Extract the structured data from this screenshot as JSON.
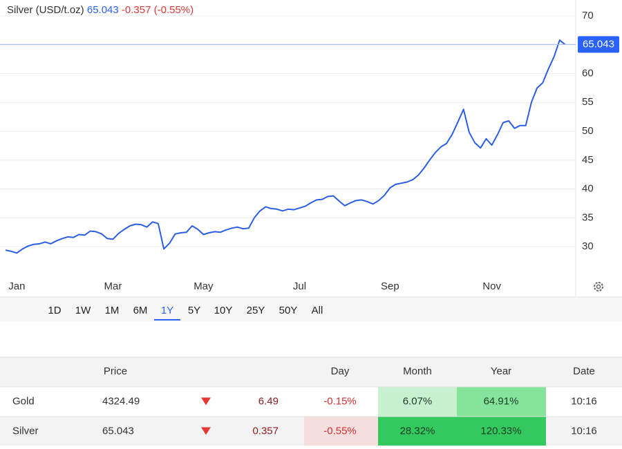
{
  "chart_data": {
    "type": "line",
    "title": "Silver (USD/t.oz)",
    "last_value": 65.043,
    "change": "-0.357 (-0.55%)",
    "color": "#2b5ee8",
    "last_line_color": "#a9c1f5",
    "tag_color": "#2962ff",
    "grid": true,
    "categories": [
      null,
      null,
      "Jan",
      null,
      null,
      null,
      null,
      null,
      null,
      null,
      null,
      null,
      null,
      null,
      null,
      null,
      null,
      null,
      null,
      "Mar",
      null,
      null,
      null,
      null,
      null,
      null,
      null,
      null,
      null,
      null,
      null,
      null,
      null,
      null,
      null,
      "May",
      null,
      null,
      null,
      null,
      null,
      null,
      null,
      null,
      null,
      null,
      null,
      null,
      null,
      null,
      null,
      null,
      "Jul",
      null,
      null,
      null,
      null,
      null,
      null,
      null,
      null,
      null,
      null,
      null,
      null,
      null,
      null,
      null,
      "Sep",
      null,
      null,
      null,
      null,
      null,
      null,
      null,
      null,
      null,
      null,
      null,
      null,
      null,
      null,
      null,
      null,
      null,
      "Nov",
      null,
      null,
      null,
      null,
      null,
      null,
      null,
      null,
      null,
      null,
      null,
      null,
      null
    ],
    "values": [
      29.4,
      29.2,
      28.9,
      29.6,
      30.1,
      30.4,
      30.5,
      30.8,
      30.5,
      31.0,
      31.4,
      31.7,
      31.6,
      32.1,
      32.0,
      32.7,
      32.6,
      32.2,
      31.4,
      31.3,
      32.3,
      33.0,
      33.6,
      33.9,
      33.8,
      33.4,
      34.3,
      34.0,
      29.6,
      30.6,
      32.2,
      32.4,
      32.5,
      33.6,
      33.0,
      32.1,
      32.4,
      32.6,
      32.5,
      32.9,
      33.2,
      33.4,
      33.1,
      33.2,
      35.0,
      36.2,
      36.9,
      36.6,
      36.5,
      36.2,
      36.5,
      36.4,
      36.7,
      37.0,
      37.6,
      38.1,
      38.2,
      38.7,
      38.8,
      37.9,
      37.1,
      37.6,
      38.0,
      38.1,
      37.8,
      37.4,
      38.0,
      38.9,
      40.2,
      40.8,
      41.0,
      41.2,
      41.6,
      42.4,
      43.6,
      45.0,
      46.3,
      47.3,
      47.9,
      49.5,
      51.6,
      53.8,
      49.8,
      48.0,
      47.1,
      48.7,
      47.6,
      49.4,
      51.5,
      51.8,
      50.5,
      51.0,
      51.0,
      55.0,
      57.5,
      58.4,
      60.8,
      62.9,
      65.8,
      65.0
    ],
    "ylim": [
      25.1,
      72.75
    ],
    "yticks": [
      30,
      35,
      40,
      45,
      50,
      55,
      60,
      65,
      70
    ]
  },
  "range_selector": {
    "options": [
      "1D",
      "1W",
      "1M",
      "6M",
      "1Y",
      "5Y",
      "10Y",
      "25Y",
      "50Y",
      "All"
    ],
    "active": "1Y"
  },
  "table": {
    "header": {
      "price": "Price",
      "day": "Day",
      "month": "Month",
      "year": "Year",
      "date": "Date"
    },
    "rows": [
      {
        "name": "Gold",
        "price": "4324.49",
        "direction": "down",
        "change": "6.49",
        "day": "-0.15%",
        "month": "6.07%",
        "year": "64.91%",
        "date": "10:16",
        "month_color": "#c8f1d2",
        "year_color": "#86e39c"
      },
      {
        "name": "Silver",
        "price": "65.043",
        "direction": "down",
        "change": "0.357",
        "day": "-0.55%",
        "month": "28.32%",
        "year": "120.33%",
        "date": "10:16",
        "day_color": "#f7dede",
        "month_color": "#33c95e",
        "year_color": "#33c95e"
      }
    ]
  }
}
